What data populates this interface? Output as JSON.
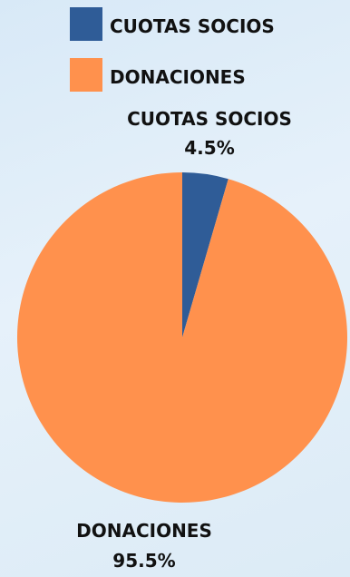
{
  "chart_data": {
    "type": "pie",
    "legend_position": "top",
    "slices": [
      {
        "label": "CUOTAS SOCIOS",
        "value": 4.5,
        "display": "4.5%",
        "color": "#2f5c97"
      },
      {
        "label": "DONACIONES",
        "value": 95.5,
        "display": "95.5%",
        "color": "#ff914d"
      }
    ]
  }
}
